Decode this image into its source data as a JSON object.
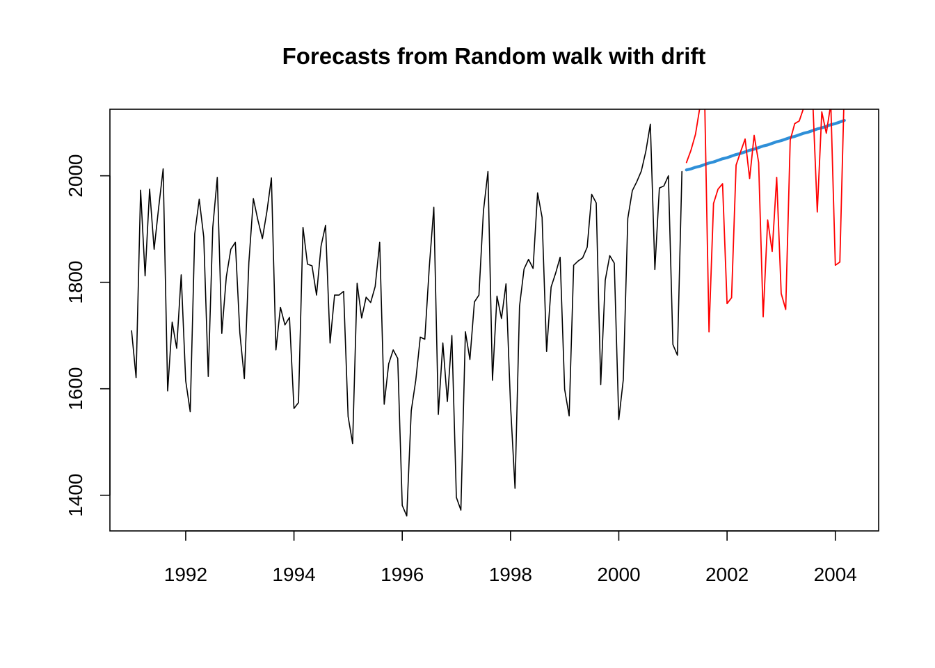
{
  "chart_data": {
    "type": "line",
    "title": "Forecasts from Random walk with drift",
    "xlabel": "",
    "ylabel": "",
    "xlim": [
      1990.6,
      2004.8
    ],
    "ylim": [
      1333,
      2125
    ],
    "x_ticks": [
      1992,
      1994,
      1996,
      1998,
      2000,
      2002,
      2004
    ],
    "x_tick_labels": [
      "1992",
      "1994",
      "1996",
      "1998",
      "2000",
      "2002",
      "2004"
    ],
    "y_ticks": [
      1400,
      1600,
      1800,
      2000
    ],
    "y_tick_labels": [
      "1400",
      "1600",
      "1800",
      "2000"
    ],
    "grid": false,
    "legend": "none",
    "series": [
      {
        "role": "observed",
        "color": "#000000",
        "x_start": 1991.0,
        "x_step": 0.08333,
        "values": [
          1709,
          1621,
          1973,
          1812,
          1975,
          1862,
          1940,
          2013,
          1596,
          1725,
          1676,
          1814,
          1615,
          1557,
          1891,
          1956,
          1885,
          1623,
          1903,
          1997,
          1704,
          1810,
          1862,
          1875,
          1705,
          1619,
          1837,
          1957,
          1917,
          1882,
          1933,
          1996,
          1673,
          1753,
          1720,
          1734,
          1563,
          1574,
          1903,
          1834,
          1831,
          1776,
          1868,
          1907,
          1686,
          1776,
          1776,
          1783,
          1548,
          1497,
          1798,
          1733,
          1772,
          1762,
          1792,
          1875,
          1571,
          1647,
          1673,
          1657,
          1381,
          1361,
          1559,
          1616,
          1697,
          1693,
          1829,
          1941,
          1552,
          1686,
          1576,
          1700,
          1396,
          1372,
          1707,
          1655,
          1763,
          1776,
          1934,
          2008,
          1616,
          1774,
          1732,
          1797,
          1570,
          1413,
          1755,
          1825,
          1843,
          1826,
          1968,
          1922,
          1670,
          1791,
          1817,
          1847,
          1599,
          1549,
          1832,
          1840,
          1846,
          1866,
          1965,
          1949,
          1608,
          1804,
          1850,
          1836,
          1542,
          1617,
          1920,
          1972,
          1989,
          2009,
          2046,
          2097,
          1824,
          1977,
          1981,
          2000,
          1683,
          1663,
          2008
        ]
      },
      {
        "role": "forecast",
        "color": "#2E8FD8",
        "x_start": 2001.25,
        "x_step": 0.08333,
        "values": [
          2011,
          2013,
          2016,
          2018,
          2021,
          2024,
          2026,
          2029,
          2032,
          2034,
          2037,
          2040,
          2042,
          2045,
          2048,
          2050,
          2053,
          2056,
          2058,
          2061,
          2064,
          2066,
          2069,
          2072,
          2074,
          2077,
          2080,
          2082,
          2085,
          2088,
          2090,
          2093,
          2096,
          2098,
          2101,
          2104
        ]
      },
      {
        "role": "simulated-path",
        "color": "#FF0000",
        "x_start": 2001.25,
        "x_step": 0.08333,
        "values": [
          2025,
          2048,
          2078,
          2130,
          2160,
          1707,
          1948,
          1975,
          1985,
          1760,
          1771,
          2020,
          2045,
          2069,
          1995,
          2076,
          2025,
          1735,
          1917,
          1858,
          1997,
          1779,
          1749,
          2067,
          2098,
          2103,
          2128,
          2150,
          2140,
          1932,
          2120,
          2080,
          2135,
          1832,
          1838,
          2170
        ]
      }
    ]
  }
}
